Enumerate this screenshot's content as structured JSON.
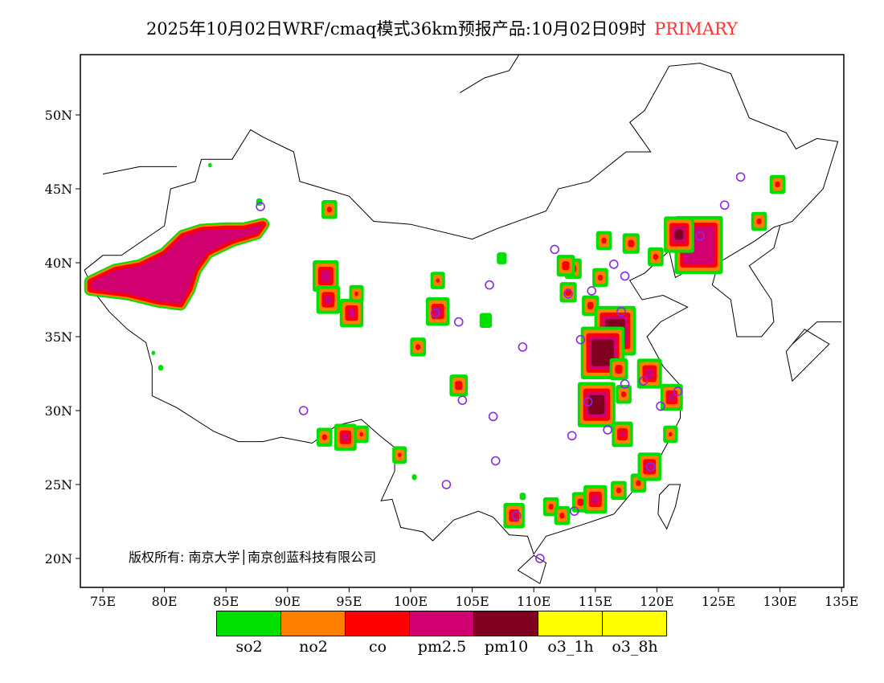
{
  "title": {
    "main": "2025年10月02日WRF/cmaq模式36km预报产品:10月02日09时",
    "tag": "PRIMARY",
    "tag_color": "#ff3333"
  },
  "copyright": "版权所有: 南京大学│南京创蓝科技有限公司",
  "axes": {
    "lon_ticks": [
      "75E",
      "80E",
      "85E",
      "90E",
      "95E",
      "100E",
      "105E",
      "110E",
      "115E",
      "120E",
      "125E",
      "130E",
      "135E"
    ],
    "lon_values": [
      75,
      80,
      85,
      90,
      95,
      100,
      105,
      110,
      115,
      120,
      125,
      130,
      135
    ],
    "lat_ticks": [
      "20N",
      "25N",
      "30N",
      "35N",
      "40N",
      "45N",
      "50N"
    ],
    "lat_values": [
      20,
      25,
      30,
      35,
      40,
      45,
      50
    ],
    "lon_range": [
      73.2,
      135.2
    ],
    "lat_range": [
      18,
      54
    ]
  },
  "legend": [
    {
      "label": "so2",
      "color": "#00e000"
    },
    {
      "label": "no2",
      "color": "#ff8000"
    },
    {
      "label": "co",
      "color": "#ff0000"
    },
    {
      "label": "pm2.5",
      "color": "#d00070"
    },
    {
      "label": "pm10",
      "color": "#800020"
    },
    {
      "label": "o3_1h",
      "color": "#ffff00"
    },
    {
      "label": "o3_8h",
      "color": "#ffff00"
    }
  ],
  "primary_pollutant_areas": [
    [
      83.7,
      46.6,
      0.3,
      0
    ],
    [
      87.7,
      44.1,
      0.5,
      0
    ],
    [
      93.4,
      43.6,
      0.4,
      2
    ],
    [
      93.1,
      39.1,
      0.8,
      3
    ],
    [
      93.3,
      37.5,
      0.6,
      3
    ],
    [
      95.2,
      36.6,
      0.6,
      3
    ],
    [
      95.6,
      37.9,
      0.3,
      2
    ],
    [
      79.1,
      33.9,
      0.3,
      0
    ],
    [
      79.7,
      32.9,
      0.4,
      0
    ],
    [
      93,
      28.2,
      0.4,
      2
    ],
    [
      94.7,
      28.2,
      0.5,
      3
    ],
    [
      96,
      28.4,
      0.3,
      2
    ],
    [
      99.1,
      27,
      0.3,
      2
    ],
    [
      100.3,
      25.5,
      0.4,
      0
    ],
    [
      100.6,
      34.3,
      0.4,
      2
    ],
    [
      102.2,
      36.7,
      0.6,
      3
    ],
    [
      102.2,
      38.8,
      0.3,
      2
    ],
    [
      103.9,
      31.7,
      0.6,
      2
    ],
    [
      106.1,
      36.1,
      1.0,
      0
    ],
    [
      107.4,
      40.3,
      0.8,
      0
    ],
    [
      109.1,
      24.2,
      0.5,
      0
    ],
    [
      108.4,
      22.9,
      0.4,
      3
    ],
    [
      111.4,
      23.5,
      0.4,
      2
    ],
    [
      112.3,
      22.9,
      0.4,
      2
    ],
    [
      113.8,
      23.8,
      0.5,
      2
    ],
    [
      115,
      24,
      0.6,
      3
    ],
    [
      116.9,
      24.6,
      0.4,
      2
    ],
    [
      118.5,
      25.1,
      0.4,
      2
    ],
    [
      119.4,
      26.2,
      0.6,
      3
    ],
    [
      121.1,
      28.4,
      0.3,
      2
    ],
    [
      121.2,
      30.9,
      0.5,
      3
    ],
    [
      119.4,
      32.5,
      0.7,
      3
    ],
    [
      117.3,
      31.1,
      0.4,
      2
    ],
    [
      115.1,
      30.4,
      1.3,
      4
    ],
    [
      117.2,
      28.4,
      0.4,
      3
    ],
    [
      115.7,
      41.5,
      0.4,
      2
    ],
    [
      117.9,
      41.3,
      0.5,
      2
    ],
    [
      113.2,
      39.6,
      0.5,
      2
    ],
    [
      114.6,
      37.1,
      0.5,
      2
    ],
    [
      115.4,
      39,
      0.4,
      2
    ],
    [
      116.6,
      35.4,
      1.6,
      4
    ],
    [
      115.6,
      33.9,
      1.8,
      4
    ],
    [
      116.9,
      32.8,
      0.6,
      2
    ],
    [
      123.4,
      41.2,
      2.6,
      3
    ],
    [
      121.8,
      41.9,
      0.7,
      4
    ],
    [
      128.3,
      42.8,
      0.4,
      2
    ],
    [
      129.8,
      45.3,
      0.4,
      2
    ],
    [
      119.9,
      40.4,
      0.4,
      2
    ],
    [
      112.6,
      39.8,
      0.6,
      2
    ],
    [
      112.8,
      38.0,
      0.5,
      2
    ]
  ],
  "xinjiang_area": [
    [
      74,
      38.7
    ],
    [
      76,
      39.5
    ],
    [
      78,
      39.8
    ],
    [
      80,
      40.6
    ],
    [
      81.5,
      41.8
    ],
    [
      83,
      42.2
    ],
    [
      85,
      42.3
    ],
    [
      86.5,
      42.3
    ],
    [
      88,
      42.6
    ],
    [
      87.5,
      42
    ],
    [
      85.5,
      41.5
    ],
    [
      83.5,
      40.7
    ],
    [
      82.5,
      39.5
    ],
    [
      82,
      38.2
    ],
    [
      81.3,
      37.2
    ],
    [
      79.5,
      37.4
    ],
    [
      77,
      37.9
    ],
    [
      74,
      38.2
    ]
  ],
  "stations": [
    [
      87.8,
      43.8
    ],
    [
      91.3,
      30
    ],
    [
      102,
      36.6
    ],
    [
      103.9,
      36
    ],
    [
      104.2,
      30.7
    ],
    [
      106.4,
      38.5
    ],
    [
      106.7,
      29.6
    ],
    [
      106.9,
      26.6
    ],
    [
      102.9,
      25
    ],
    [
      109.1,
      34.3
    ],
    [
      111.7,
      40.9
    ],
    [
      112.8,
      37.9
    ],
    [
      114.7,
      38.1
    ],
    [
      116.5,
      39.9
    ],
    [
      117.4,
      39.1
    ],
    [
      117.1,
      36.7
    ],
    [
      113.8,
      34.8
    ],
    [
      117.4,
      31.8
    ],
    [
      118.9,
      32
    ],
    [
      120.3,
      30.3
    ],
    [
      121.7,
      31.3
    ],
    [
      116,
      28.7
    ],
    [
      113.1,
      28.3
    ],
    [
      114.4,
      30.6
    ],
    [
      113.3,
      23.2
    ],
    [
      108.6,
      22.9
    ],
    [
      110.5,
      20
    ],
    [
      119.5,
      26.2
    ],
    [
      123.5,
      41.8
    ],
    [
      125.5,
      43.9
    ],
    [
      126.8,
      45.8
    ]
  ],
  "china_border": [
    [
      73.5,
      39.5
    ],
    [
      75,
      40.5
    ],
    [
      76.5,
      40.5
    ],
    [
      80,
      42.5
    ],
    [
      80.5,
      45
    ],
    [
      82.5,
      45.5
    ],
    [
      83,
      47
    ],
    [
      85.5,
      47
    ],
    [
      87,
      49
    ],
    [
      88,
      48.5
    ],
    [
      90.5,
      47.5
    ],
    [
      91,
      45.5
    ],
    [
      95,
      44.5
    ],
    [
      97,
      42.8
    ],
    [
      100,
      42.6
    ],
    [
      105,
      41.6
    ],
    [
      107,
      42.3
    ],
    [
      111,
      43.5
    ],
    [
      112,
      45
    ],
    [
      114.5,
      45.5
    ],
    [
      116,
      46.5
    ],
    [
      117.5,
      47.5
    ],
    [
      119.5,
      47.5
    ],
    [
      117.8,
      49.5
    ],
    [
      119,
      50.3
    ],
    [
      121,
      53.3
    ],
    [
      123.5,
      53.5
    ],
    [
      126,
      52.8
    ],
    [
      127.5,
      49.8
    ],
    [
      130.5,
      48.8
    ],
    [
      131.3,
      47.7
    ],
    [
      133,
      48.4
    ],
    [
      134.7,
      48.2
    ],
    [
      133.5,
      45
    ],
    [
      131,
      42.8
    ],
    [
      129.5,
      42.4
    ],
    [
      128,
      41.5
    ],
    [
      125,
      40
    ],
    [
      123,
      39.7
    ],
    [
      121.5,
      39
    ],
    [
      121,
      40.8
    ],
    [
      119,
      39.3
    ],
    [
      117.8,
      38.8
    ],
    [
      118.8,
      37.5
    ],
    [
      120.5,
      37.8
    ],
    [
      122.5,
      37
    ],
    [
      120.3,
      36
    ],
    [
      119.2,
      35
    ],
    [
      120.5,
      33
    ],
    [
      121.8,
      31.8
    ],
    [
      121.9,
      30.8
    ],
    [
      121.9,
      29.5
    ],
    [
      121,
      28
    ],
    [
      119.7,
      26
    ],
    [
      118,
      24.5
    ],
    [
      116.5,
      23
    ],
    [
      114,
      22.3
    ],
    [
      111,
      21.5
    ],
    [
      110,
      20.3
    ],
    [
      109.5,
      21.5
    ],
    [
      108,
      21.6
    ],
    [
      106.7,
      22.8
    ],
    [
      105.5,
      23.2
    ],
    [
      103.5,
      22.6
    ],
    [
      101.8,
      21.2
    ],
    [
      101,
      21.8
    ],
    [
      99.2,
      22.1
    ],
    [
      98.5,
      24
    ],
    [
      97.6,
      23.9
    ],
    [
      98.7,
      25.9
    ],
    [
      98.7,
      27.5
    ],
    [
      97.5,
      28.3
    ],
    [
      96,
      29.4
    ],
    [
      94,
      29
    ],
    [
      92,
      27.8
    ],
    [
      89.5,
      28.2
    ],
    [
      88,
      27.9
    ],
    [
      86,
      27.9
    ],
    [
      84,
      28.6
    ],
    [
      81,
      30.2
    ],
    [
      79,
      31
    ],
    [
      79,
      33
    ],
    [
      78.5,
      34.6
    ],
    [
      77,
      35.5
    ],
    [
      75.5,
      36.7
    ],
    [
      74.5,
      37.8
    ],
    [
      73.5,
      39.5
    ]
  ],
  "other_lines": [
    [
      [
        125,
        40
      ],
      [
        124.5,
        38.5
      ],
      [
        126,
        37.5
      ],
      [
        126.5,
        35
      ],
      [
        128.5,
        35
      ],
      [
        129.5,
        36
      ],
      [
        129.3,
        37.5
      ],
      [
        128.5,
        38.5
      ],
      [
        127.5,
        39.8
      ],
      [
        129.5,
        41
      ],
      [
        130,
        42.5
      ]
    ],
    [
      [
        121,
        25
      ],
      [
        121.9,
        25
      ],
      [
        121.5,
        23.5
      ],
      [
        120.8,
        22
      ],
      [
        120.1,
        23
      ],
      [
        120.2,
        24.3
      ],
      [
        121,
        25
      ]
    ],
    [
      [
        108.7,
        19.2
      ],
      [
        110.5,
        18.3
      ],
      [
        111,
        19.7
      ],
      [
        110,
        20.2
      ],
      [
        108.7,
        19.2
      ]
    ],
    [
      [
        104,
        51.5
      ],
      [
        106,
        52.5
      ],
      [
        108,
        53
      ],
      [
        109.5,
        55
      ]
    ],
    [
      [
        75,
        46
      ],
      [
        78,
        46.5
      ],
      [
        81,
        46.5
      ]
    ],
    [
      [
        130.5,
        34
      ],
      [
        132,
        35.5
      ],
      [
        134,
        34.5
      ],
      [
        131,
        32
      ],
      [
        130.5,
        34
      ]
    ],
    [
      [
        135,
        36
      ],
      [
        133,
        36
      ],
      [
        131,
        34.5
      ]
    ]
  ]
}
